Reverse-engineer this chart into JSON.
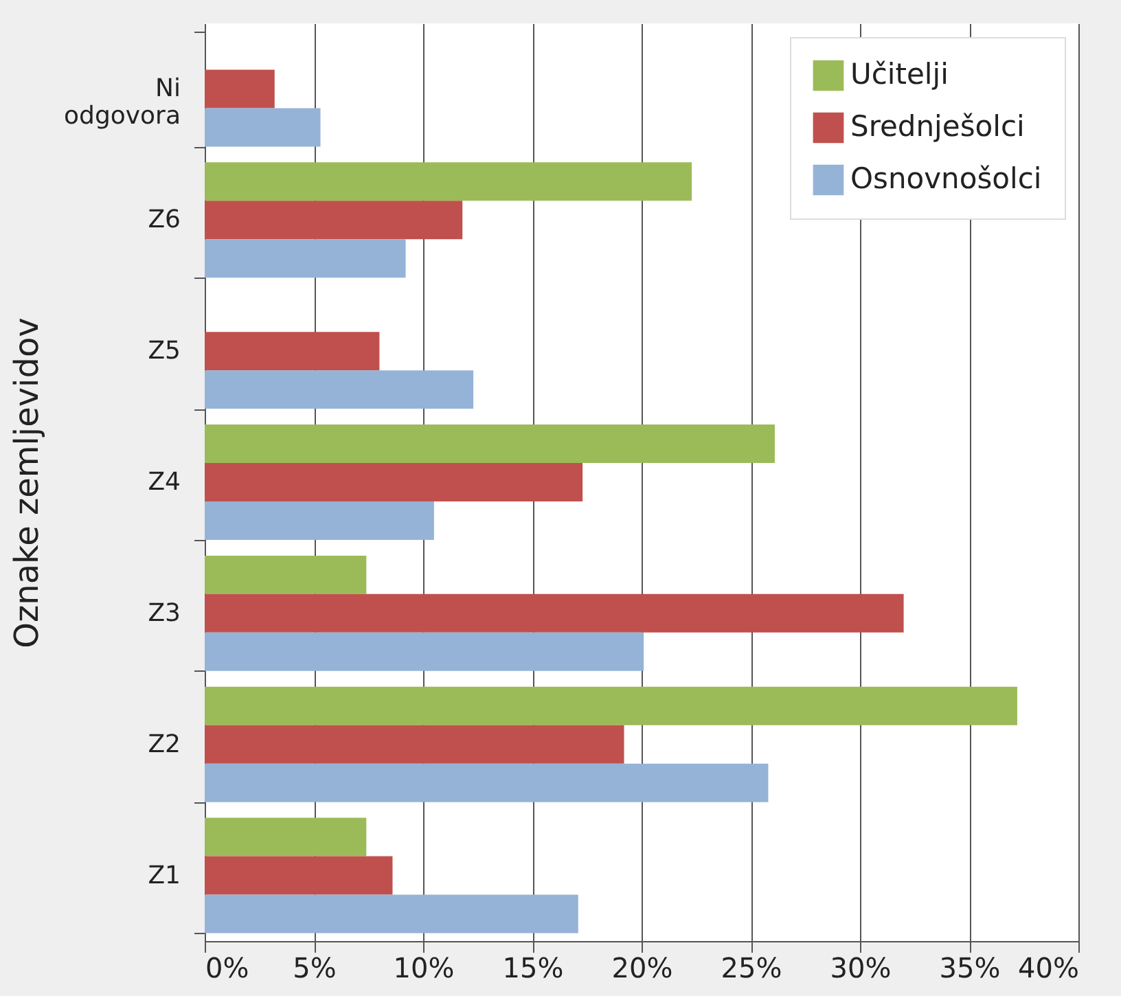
{
  "chart_data": {
    "type": "bar",
    "orientation": "horizontal",
    "ylabel": "Oznake zemljevidov",
    "categories": [
      "Ni odgovora",
      "Z6",
      "Z5",
      "Z4",
      "Z3",
      "Z2",
      "Z1"
    ],
    "series": [
      {
        "name": "Učitelji",
        "color": "#9bbb59",
        "values": [
          null,
          22.3,
          null,
          26.1,
          7.4,
          37.2,
          7.4
        ]
      },
      {
        "name": "Srednješolci",
        "color": "#c0504d",
        "values": [
          3.2,
          11.8,
          8.0,
          17.3,
          32.0,
          19.2,
          8.6
        ]
      },
      {
        "name": "Osnovnošolci",
        "color": "#95b3d7",
        "values": [
          5.3,
          9.2,
          12.3,
          10.5,
          20.1,
          25.8,
          17.1
        ]
      }
    ],
    "xlim": [
      0,
      40
    ],
    "xticks": [
      {
        "value": 0,
        "label": "0%"
      },
      {
        "value": 5,
        "label": "5%"
      },
      {
        "value": 10,
        "label": "10%"
      },
      {
        "value": 15,
        "label": "15%"
      },
      {
        "value": 20,
        "label": "20%"
      },
      {
        "value": 25,
        "label": "25%"
      },
      {
        "value": 30,
        "label": "30%"
      },
      {
        "value": 35,
        "label": "35%"
      },
      {
        "value": 40,
        "label": "40%"
      }
    ],
    "grid": "x",
    "legend": "top right"
  }
}
